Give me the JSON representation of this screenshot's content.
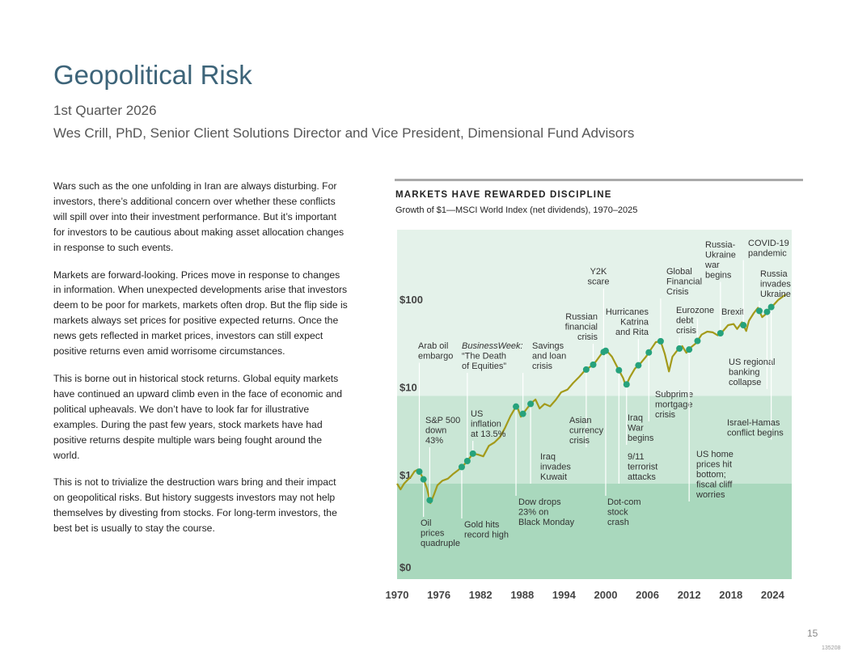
{
  "header": {
    "title": "Geopolitical Risk",
    "subtitle": "1st Quarter 2026",
    "author": "Wes Crill, PhD, Senior Client Solutions Director and Vice President, Dimensional Fund Advisors"
  },
  "body": {
    "paragraphs": [
      "Wars such as the one unfolding in Iran are always disturbing. For investors, there’s additional concern over whether these conflicts will spill over into their investment performance. But it’s important for investors to be cautious about making asset allocation changes in response to such events.",
      "Markets are forward-looking. Prices move in response to changes in information. When unexpected developments arise that investors deem to be poor for markets, markets often drop. But the flip side is markets always set prices for positive expected returns. Once the news gets reflected in market prices, investors can still expect positive returns even amid worrisome circumstances.",
      "This is borne out in historical stock returns. Global equity markets have continued an upward climb even in the face of economic and political upheavals. We don’t have to look far for illustrative examples. During the past few years, stock markets have had positive returns despite multiple wars being fought around the world.",
      "This is not to trivialize the destruction wars bring and their impact on geopolitical risks. But history suggests investors may not help themselves by divesting from stocks. For long-term investors, the best bet is usually to stay the course."
    ]
  },
  "footer": {
    "page_number": "15",
    "doc_code": "135208"
  },
  "chart_data": {
    "type": "line",
    "title": "MARKETS HAVE REWARDED DISCIPLINE",
    "subtitle": "Growth of $1—MSCI World Index (net dividends), 1970–2025",
    "xlabel": "",
    "ylabel": "",
    "y_scale": "log",
    "xlim": [
      1970,
      2025.9
    ],
    "x_ticks": [
      "1970",
      "1976",
      "1982",
      "1988",
      "1994",
      "2000",
      "2006",
      "2012",
      "2018",
      "2024"
    ],
    "y_ticks": [
      "$0",
      "$1",
      "$10",
      "$100"
    ],
    "colors": {
      "line": "#a39a1a",
      "marker": "#26a27c",
      "band_light": "#e4f2ea",
      "band_mid": "#c9e6d5",
      "band_dark": "#a9d8bd",
      "leader": "#ffffff"
    },
    "series": [
      {
        "points": [
          [
            1970.0,
            1.0
          ],
          [
            1970.5,
            0.86
          ],
          [
            1971.0,
            1.0
          ],
          [
            1971.5,
            1.1
          ],
          [
            1972.0,
            1.2
          ],
          [
            1972.5,
            1.38
          ],
          [
            1973.0,
            1.45
          ],
          [
            1973.4,
            1.3
          ],
          [
            1973.8,
            1.12
          ],
          [
            1974.3,
            0.88
          ],
          [
            1974.8,
            0.6
          ],
          [
            1975.3,
            0.75
          ],
          [
            1975.8,
            0.96
          ],
          [
            1976.5,
            1.08
          ],
          [
            1977.3,
            1.14
          ],
          [
            1978.0,
            1.28
          ],
          [
            1978.8,
            1.43
          ],
          [
            1979.5,
            1.6
          ],
          [
            1980.2,
            1.85
          ],
          [
            1980.9,
            2.2
          ],
          [
            1981.6,
            2.15
          ],
          [
            1982.4,
            2.05
          ],
          [
            1983.2,
            2.7
          ],
          [
            1984.0,
            2.95
          ],
          [
            1984.8,
            3.4
          ],
          [
            1985.5,
            4.3
          ],
          [
            1986.3,
            5.9
          ],
          [
            1987.2,
            7.8
          ],
          [
            1987.8,
            5.8
          ],
          [
            1988.5,
            6.9
          ],
          [
            1989.3,
            8.3
          ],
          [
            1989.9,
            9.1
          ],
          [
            1990.5,
            7.2
          ],
          [
            1991.2,
            8.1
          ],
          [
            1992.0,
            7.6
          ],
          [
            1992.8,
            9.0
          ],
          [
            1993.6,
            11.0
          ],
          [
            1994.5,
            11.8
          ],
          [
            1995.3,
            14.0
          ],
          [
            1996.2,
            16.5
          ],
          [
            1997.0,
            19.5
          ],
          [
            1997.6,
            21.0
          ],
          [
            1998.3,
            23.0
          ],
          [
            1998.8,
            26.0
          ],
          [
            1999.5,
            31.0
          ],
          [
            2000.1,
            33.0
          ],
          [
            2000.9,
            28.0
          ],
          [
            2001.7,
            21.0
          ],
          [
            2002.5,
            16.0
          ],
          [
            2002.9,
            13.0
          ],
          [
            2003.5,
            16.5
          ],
          [
            2004.2,
            20.5
          ],
          [
            2005.0,
            23.5
          ],
          [
            2005.8,
            28.0
          ],
          [
            2006.5,
            34.0
          ],
          [
            2007.2,
            41.0
          ],
          [
            2007.9,
            42.0
          ],
          [
            2008.5,
            30.0
          ],
          [
            2009.1,
            19.0
          ],
          [
            2009.6,
            28.0
          ],
          [
            2010.3,
            33.0
          ],
          [
            2011.0,
            37.0
          ],
          [
            2011.6,
            31.0
          ],
          [
            2012.3,
            36.0
          ],
          [
            2013.0,
            40.0
          ],
          [
            2013.8,
            50.0
          ],
          [
            2014.6,
            54.0
          ],
          [
            2015.4,
            53.0
          ],
          [
            2016.1,
            49.0
          ],
          [
            2016.8,
            54.0
          ],
          [
            2017.6,
            64.0
          ],
          [
            2018.4,
            66.0
          ],
          [
            2018.9,
            58.0
          ],
          [
            2019.6,
            69.0
          ],
          [
            2020.2,
            55.0
          ],
          [
            2020.6,
            72.0
          ],
          [
            2021.3,
            88.0
          ],
          [
            2021.9,
            101.0
          ],
          [
            2022.5,
            79.0
          ],
          [
            2022.9,
            84.0
          ],
          [
            2023.5,
            98.0
          ],
          [
            2024.2,
            110.0
          ],
          [
            2024.8,
            124.0
          ],
          [
            2025.5,
            136.0
          ],
          [
            2025.9,
            143.0
          ]
        ]
      }
    ],
    "events": [
      {
        "x": 1973.2,
        "label": [
          "Arab oil",
          "embargo"
        ]
      },
      {
        "x": 1973.8,
        "label": [
          "Oil",
          "prices",
          "quadruple"
        ]
      },
      {
        "x": 1974.7,
        "label": [
          "S&P 500",
          "down",
          "43%"
        ]
      },
      {
        "x": 1979.3,
        "label": [
          "Gold hits",
          "record high"
        ]
      },
      {
        "x": 1980.1,
        "label": [
          "BusinessWeek:",
          "“The Death",
          "of Equities”"
        ]
      },
      {
        "x": 1980.9,
        "label": [
          "US",
          "inflation",
          "at 13.5%"
        ]
      },
      {
        "x": 1987.1,
        "label": [
          "Dow drops",
          "23% on",
          "Black Monday"
        ]
      },
      {
        "x": 1988.1,
        "label": [
          "Savings",
          "and loan",
          "crisis"
        ]
      },
      {
        "x": 1989.2,
        "label": [
          "Iraq",
          "invades",
          "Kuwait"
        ]
      },
      {
        "x": 1997.2,
        "label": [
          "Asian",
          "currency",
          "crisis"
        ]
      },
      {
        "x": 1998.2,
        "label": [
          "Russian",
          "financial",
          "crisis"
        ]
      },
      {
        "x": 1999.7,
        "label": [
          "Y2K",
          "scare"
        ]
      },
      {
        "x": 2000.0,
        "label": [
          "Dot-com",
          "stock",
          "crash"
        ]
      },
      {
        "x": 2001.9,
        "label": [
          "9/11",
          "terrorist",
          "attacks"
        ]
      },
      {
        "x": 2003.0,
        "label": [
          "Iraq",
          "War",
          "begins"
        ]
      },
      {
        "x": 2004.7,
        "label": [
          "Hurricanes",
          "Katrina",
          "and Rita"
        ]
      },
      {
        "x": 2006.2,
        "label": [
          "Subprime",
          "mortgage",
          "crisis"
        ]
      },
      {
        "x": 2007.9,
        "label": [
          "Global",
          "Financial",
          "Crisis"
        ]
      },
      {
        "x": 2010.6,
        "label": [
          "Eurozone",
          "debt",
          "crisis"
        ]
      },
      {
        "x": 2012.0,
        "label": [
          "US home",
          "prices hit",
          "bottom;",
          "fiscal cliff",
          "worries"
        ]
      },
      {
        "x": 2013.2,
        "label": [
          "Brexit"
        ]
      },
      {
        "x": 2016.5,
        "label": [
          "Russia-",
          "Ukraine",
          "war",
          "begins"
        ]
      },
      {
        "x": 2019.8,
        "label": [
          "COVID-19",
          "pandemic"
        ]
      },
      {
        "x": 2022.1,
        "label": [
          "Russia",
          "invades",
          "Ukraine"
        ]
      },
      {
        "x": 2023.2,
        "label": [
          "US regional",
          "banking",
          "collapse"
        ]
      },
      {
        "x": 2023.8,
        "label": [
          "Israel-Hamas",
          "conflict begins"
        ]
      }
    ]
  }
}
